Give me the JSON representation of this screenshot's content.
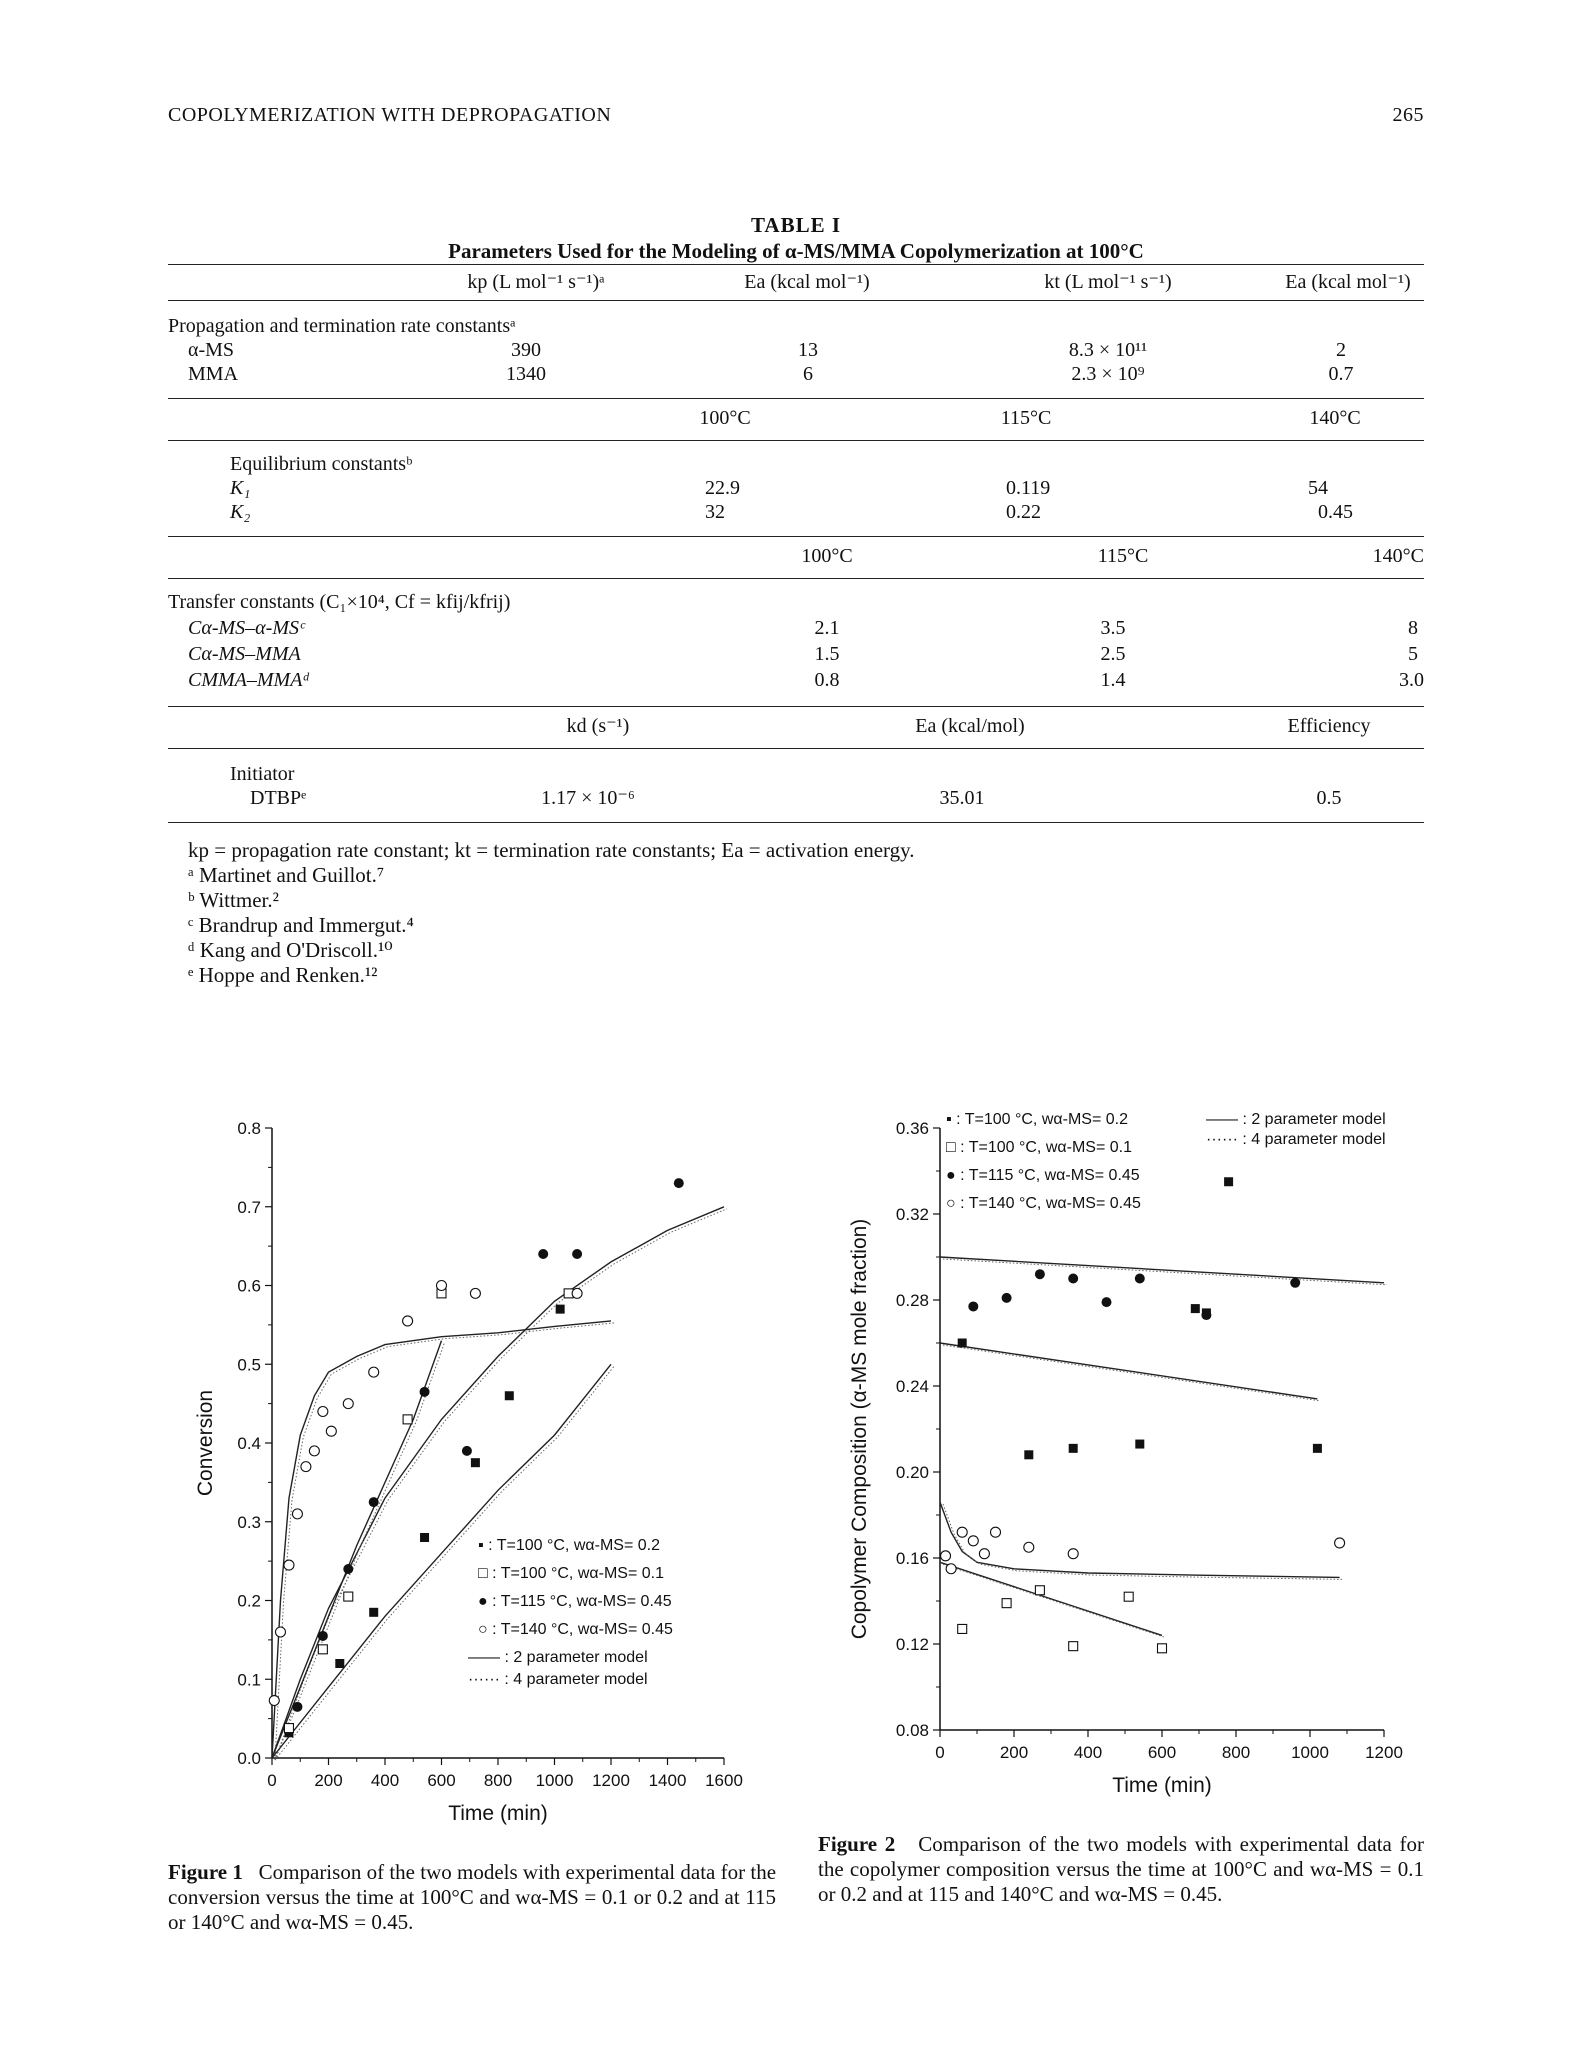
{
  "header": {
    "running_title": "COPOLYMERIZATION WITH DEPROPAGATION",
    "page_number": "265"
  },
  "table": {
    "label": "TABLE I",
    "title": "Parameters Used for the Modeling of α-MS/MMA Copolymerization at 100°C",
    "rate_section": {
      "headers": [
        "kp (L mol⁻¹ s⁻¹)ᵃ",
        "Ea (kcal mol⁻¹)",
        "kt (L mol⁻¹ s⁻¹)",
        "Ea (kcal mol⁻¹)"
      ],
      "label": "Propagation and termination rate constantsᵃ",
      "rows": [
        {
          "name": "α-MS",
          "kp": "390",
          "ea1": "13",
          "kt": "8.3 × 10¹¹",
          "ea2": "2"
        },
        {
          "name": "MMA",
          "kp": "1340",
          "ea1": "6",
          "kt": "2.3 × 10⁹",
          "ea2": "0.7"
        }
      ]
    },
    "equilibrium_section": {
      "headers": [
        "100°C",
        "115°C",
        "140°C"
      ],
      "label": "Equilibrium constantsᵇ",
      "rows": [
        {
          "name": "K₁",
          "v100": "22.9",
          "v115": "0.119",
          "v140": "54"
        },
        {
          "name": "K₂",
          "v100": "32",
          "v115": "0.22",
          "v140": "0.45"
        }
      ]
    },
    "transfer_section": {
      "headers": [
        "100°C",
        "115°C",
        "140°C"
      ],
      "label": "Transfer constants (C₁×10⁴, Cf = kfij/kfrij)",
      "rows": [
        {
          "name": "Cα-MS–α-MSᶜ",
          "v100": "2.1",
          "v115": "3.5",
          "v140": "8"
        },
        {
          "name": "Cα-MS–MMA",
          "v100": "1.5",
          "v115": "2.5",
          "v140": "5"
        },
        {
          "name": "CMMA–MMAᵈ",
          "v100": "0.8",
          "v115": "1.4",
          "v140": "3.0"
        }
      ]
    },
    "initiator_section": {
      "headers": [
        "kd (s⁻¹)",
        "Ea (kcal/mol)",
        "Efficiency"
      ],
      "label": "Initiator",
      "rows": [
        {
          "name": "DTBPᵉ",
          "kd": "1.17 × 10⁻⁶",
          "ea": "35.01",
          "eff": "0.5"
        }
      ]
    },
    "footnotes": [
      "kp = propagation rate constant; kt = termination rate constants; Ea = activation energy.",
      "ᵃ Martinet and Guillot.⁷",
      "ᵇ Wittmer.²",
      "ᶜ Brandrup and Immergut.⁴",
      "ᵈ Kang and O'Driscoll.¹⁰",
      "ᵉ Hoppe and Renken.¹²"
    ]
  },
  "figures": [
    {
      "caption_label": "Figure 1",
      "caption_text": "Comparison of the two models with experimental data for the conversion versus the time at 100°C and wα-MS = 0.1 or 0.2 and at 115 or 140°C and wα-MS = 0.45."
    },
    {
      "caption_label": "Figure 2",
      "caption_text": "Comparison of the two models with experimental data for the copolymer composition versus the time at 100°C and wα-MS = 0.1 or 0.2 and at 115 and 140°C and wα-MS = 0.45."
    }
  ],
  "chart_data": [
    {
      "type": "scatter",
      "xlabel": "Time (min)",
      "ylabel": "Conversion",
      "xlim": [
        0,
        1600
      ],
      "ylim": [
        0,
        0.8
      ],
      "xticks": [
        "0",
        "200",
        "400",
        "600",
        "800",
        "1000",
        "1200",
        "1400",
        "1600"
      ],
      "yticks": [
        "0.0",
        "0.1",
        "0.2",
        "0.3",
        "0.4",
        "0.5",
        "0.6",
        "0.7",
        "0.8"
      ],
      "legend_position": "bottom-right",
      "legend": [
        "▪ : T=100 °C, wα-MS= 0.2",
        "□ : T=100 °C, wα-MS= 0.1",
        "● : T=115 °C, wα-MS= 0.45",
        "○ : T=140 °C, wα-MS= 0.45",
        "—— : 2 parameter model",
        "······ : 4 parameter model"
      ],
      "series": [
        {
          "marker": "filled-square",
          "x": [
            60,
            240,
            360,
            540,
            720,
            840,
            1020
          ],
          "y": [
            0.032,
            0.12,
            0.185,
            0.28,
            0.375,
            0.46,
            0.57
          ]
        },
        {
          "marker": "open-square",
          "x": [
            60,
            180,
            270,
            480,
            600,
            1050
          ],
          "y": [
            0.038,
            0.138,
            0.205,
            0.43,
            0.59,
            0.59
          ]
        },
        {
          "marker": "filled-circle",
          "x": [
            90,
            180,
            270,
            360,
            540,
            690,
            1080
          ],
          "y": [
            0.065,
            0.155,
            0.24,
            0.325,
            0.465,
            0.39,
            0.64
          ]
        },
        {
          "marker": "open-circle",
          "x": [
            8,
            30,
            60,
            90,
            120,
            150,
            180,
            210,
            270,
            360,
            480,
            600,
            720
          ],
          "y": [
            0.073,
            0.16,
            0.245,
            0.31,
            0.37,
            0.39,
            0.44,
            0.415,
            0.45,
            0.49,
            0.555,
            0.6,
            0.59
          ]
        },
        {
          "marker": "filled-circle",
          "x": [
            1440
          ],
          "y": [
            0.73
          ]
        },
        {
          "marker": "filled-circle",
          "x": [
            960
          ],
          "y": [
            0.64
          ]
        },
        {
          "marker": "open-circle",
          "x": [
            1080
          ],
          "y": [
            0.59
          ]
        }
      ],
      "model_curves": {
        "T140": {
          "x": [
            0,
            30,
            60,
            100,
            150,
            200,
            300,
            400,
            600,
            800,
            1000,
            1200
          ],
          "y": [
            0,
            0.2,
            0.33,
            0.41,
            0.46,
            0.49,
            0.51,
            0.525,
            0.535,
            0.54,
            0.548,
            0.555
          ]
        },
        "T115": {
          "x": [
            0,
            100,
            200,
            300,
            400,
            600,
            800,
            1000,
            1200,
            1400,
            1600
          ],
          "y": [
            0,
            0.1,
            0.19,
            0.26,
            0.33,
            0.43,
            0.51,
            0.58,
            0.63,
            0.67,
            0.7
          ]
        },
        "T100_w01": {
          "x": [
            0,
            100,
            200,
            300,
            400,
            500,
            600
          ],
          "y": [
            0,
            0.09,
            0.18,
            0.27,
            0.35,
            0.43,
            0.53
          ]
        },
        "T100_w02": {
          "x": [
            0,
            200,
            400,
            600,
            800,
            1000,
            1200
          ],
          "y": [
            0,
            0.09,
            0.18,
            0.26,
            0.34,
            0.41,
            0.5
          ]
        }
      }
    },
    {
      "type": "scatter",
      "xlabel": "Time (min)",
      "ylabel": "Copolymer Composition (α-MS mole fraction)",
      "xlim": [
        0,
        1200
      ],
      "ylim": [
        0.08,
        0.36
      ],
      "xticks": [
        "0",
        "200",
        "400",
        "600",
        "800",
        "1000",
        "1200"
      ],
      "yticks": [
        "0.08",
        "0.12",
        "0.16",
        "0.20",
        "0.24",
        "0.28",
        "0.32",
        "0.36"
      ],
      "legend_position": "top",
      "legend": [
        "▪ : T=100 °C, wα-MS= 0.2",
        "□ : T=100 °C, wα-MS= 0.1",
        "● : T=115 °C, wα-MS= 0.45",
        "○ : T=140 °C, wα-MS= 0.45",
        "—— : 2 parameter model",
        "······ : 4 parameter model"
      ],
      "series": [
        {
          "marker": "filled-square",
          "x": [
            60,
            240,
            360,
            540,
            690,
            720,
            780,
            1020
          ],
          "y": [
            0.26,
            0.208,
            0.211,
            0.213,
            0.276,
            0.274,
            0.335,
            0.211
          ]
        },
        {
          "marker": "open-square",
          "x": [
            60,
            180,
            270,
            360,
            510,
            600
          ],
          "y": [
            0.127,
            0.139,
            0.145,
            0.119,
            0.142,
            0.118
          ]
        },
        {
          "marker": "filled-circle",
          "x": [
            90,
            180,
            270,
            360,
            450,
            540,
            720,
            960
          ],
          "y": [
            0.277,
            0.281,
            0.292,
            0.29,
            0.279,
            0.29,
            0.273,
            0.288
          ]
        },
        {
          "marker": "open-circle",
          "x": [
            15,
            30,
            60,
            90,
            120,
            150,
            240,
            360,
            1080
          ],
          "y": [
            0.161,
            0.155,
            0.172,
            0.168,
            0.162,
            0.172,
            0.165,
            0.162,
            0.167
          ]
        }
      ],
      "model_curves": {
        "T115": {
          "x": [
            0,
            1200
          ],
          "y": [
            0.3,
            0.288
          ]
        },
        "T100_w02": {
          "x": [
            0,
            1020
          ],
          "y": [
            0.26,
            0.234
          ]
        },
        "T140": {
          "x": [
            0,
            30,
            60,
            100,
            200,
            400,
            700,
            1080
          ],
          "y": [
            0.186,
            0.172,
            0.163,
            0.158,
            0.155,
            0.153,
            0.152,
            0.151
          ]
        },
        "T100_w01": {
          "x": [
            0,
            600
          ],
          "y": [
            0.158,
            0.124
          ]
        }
      }
    }
  ]
}
